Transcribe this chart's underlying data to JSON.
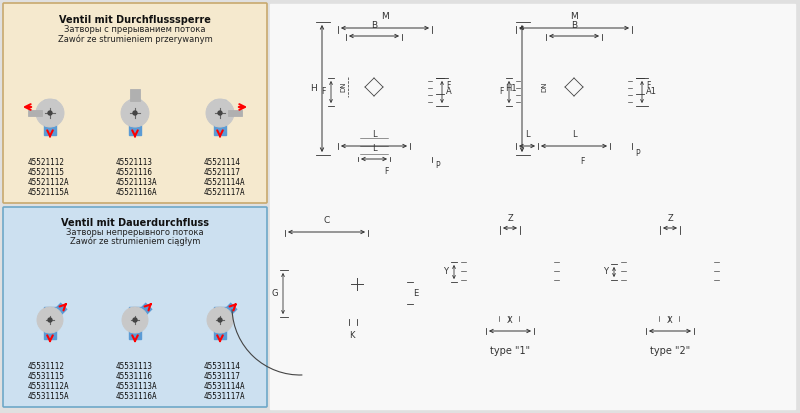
{
  "bg_color": "#e0e0e0",
  "panel_bg": "#f2f2f2",
  "box1_bg": "#f5e9ce",
  "box1_border": "#c8a96e",
  "box2_bg": "#cce0f0",
  "box2_border": "#6ea8c8",
  "box1_title": "Ventil mit Durchflusssperre",
  "box1_sub1": "Затворы с прерыванием потока",
  "box1_sub2": "Zawór ze strumieniem przerywanym",
  "box1_codes": [
    "45521112",
    "45521113",
    "45521114",
    "45521115",
    "45521116",
    "45521117",
    "45521112A",
    "45521113A",
    "45521114A",
    "45521115A",
    "45521116A",
    "45521117A"
  ],
  "box2_title": "Ventil mit Dauerdurchfluss",
  "box2_sub1": "Затворы непрерывного потока",
  "box2_sub2": "Zawór ze strumieniem ciągłym",
  "box2_codes": [
    "45531112",
    "45531113",
    "45531114",
    "45531115",
    "45531116",
    "45531117",
    "45531112A",
    "45531113A",
    "45531114A",
    "45531115A",
    "45531116A",
    "45531117A"
  ],
  "line_color": "#444444",
  "dim_color": "#333333",
  "draw_bg": "#f0f0f0",
  "type1_label": "type \"1\"",
  "type2_label": "type \"2\""
}
